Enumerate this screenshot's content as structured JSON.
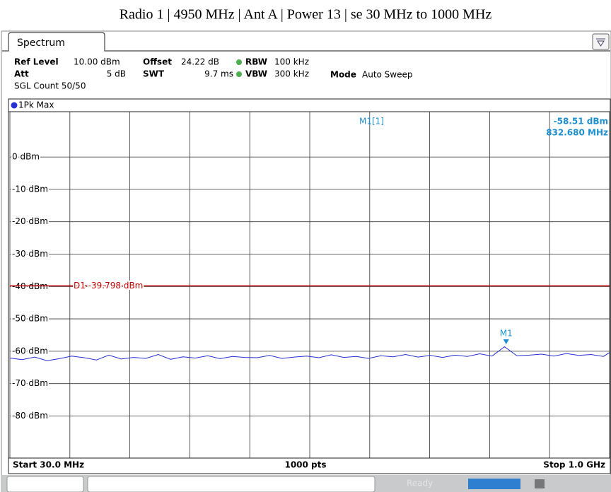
{
  "title": "Radio 1 | 4950 MHz | Ant A | Power 13 | se 30 MHz to 1000 MHz",
  "tab": "Spectrum",
  "settings": [
    {
      "label": "Ref Level",
      "value": "10.00 dBm"
    },
    {
      "label": "Offset",
      "value": "24.22 dB"
    },
    {
      "label": "RBW",
      "value": "100 kHz"
    },
    {
      "label": "Att",
      "value": "5 dB"
    },
    {
      "label": "SWT",
      "value": "9.7 ms"
    },
    {
      "label": "VBW",
      "value": "300 kHz"
    },
    {
      "label": "Mode",
      "value": "Auto Sweep"
    }
  ],
  "sgl_count": "SGL Count 50/50",
  "trace_label": "1Pk Max",
  "points": "1000 pts",
  "start": "Start 30.0 MHz",
  "stop": "Stop 1.0 GHz",
  "status": "Ready",
  "chart_data": {
    "type": "line",
    "x": [
      30,
      50,
      70,
      90,
      110,
      130,
      150,
      170,
      190,
      210,
      230,
      250,
      270,
      290,
      310,
      330,
      350,
      370,
      390,
      410,
      430,
      450,
      470,
      490,
      510,
      530,
      550,
      570,
      590,
      610,
      630,
      650,
      670,
      690,
      710,
      730,
      750,
      770,
      790,
      810,
      830,
      850,
      870,
      890,
      910,
      930,
      950,
      970,
      990,
      1000
    ],
    "series": [
      {
        "name": "1Pk Max",
        "color": "#2430d0",
        "values": [
          -62.1,
          -62.6,
          -61.8,
          -62.9,
          -62.3,
          -61.5,
          -62.0,
          -62.7,
          -61.2,
          -62.4,
          -61.9,
          -62.2,
          -61.0,
          -62.5,
          -61.7,
          -62.1,
          -61.4,
          -62.3,
          -61.6,
          -61.9,
          -62.0,
          -61.3,
          -62.2,
          -61.8,
          -61.5,
          -62.0,
          -61.1,
          -61.9,
          -61.6,
          -62.2,
          -61.4,
          -61.7,
          -61.0,
          -61.8,
          -61.3,
          -61.9,
          -61.2,
          -61.6,
          -60.8,
          -61.5,
          -58.6,
          -61.4,
          -61.2,
          -60.9,
          -61.5,
          -60.7,
          -61.3,
          -61.0,
          -61.6,
          -60.4
        ]
      }
    ],
    "xlim": [
      30,
      1000
    ],
    "xticks": [
      30,
      127,
      224,
      321,
      418,
      515,
      612,
      709,
      806,
      903,
      1000
    ],
    "ylim": [
      -93,
      14
    ],
    "yticks": [
      {
        "value": 0,
        "label": "0 dBm"
      },
      {
        "value": -10,
        "label": "-10 dBm"
      },
      {
        "value": -20,
        "label": "-20 dBm"
      },
      {
        "value": -30,
        "label": "-30 dBm"
      },
      {
        "value": -40,
        "label": "-40 dBm"
      },
      {
        "value": -50,
        "label": "-50 dBm"
      },
      {
        "value": -60,
        "label": "-60 dBm"
      },
      {
        "value": -70,
        "label": "-70 dBm"
      },
      {
        "value": -80,
        "label": "-80 dBm"
      }
    ],
    "grid": true,
    "marker": {
      "name": "M1",
      "readout": "M1[1]",
      "x": 832.68,
      "value": -58.51,
      "value_label": "-58.51 dBm",
      "x_label": "832.680 MHz",
      "color": "#1e90d0"
    },
    "display_line": {
      "name": "D1",
      "value": -39.798,
      "label": "D1 -39.798 dBm",
      "color": "#c00000"
    }
  }
}
